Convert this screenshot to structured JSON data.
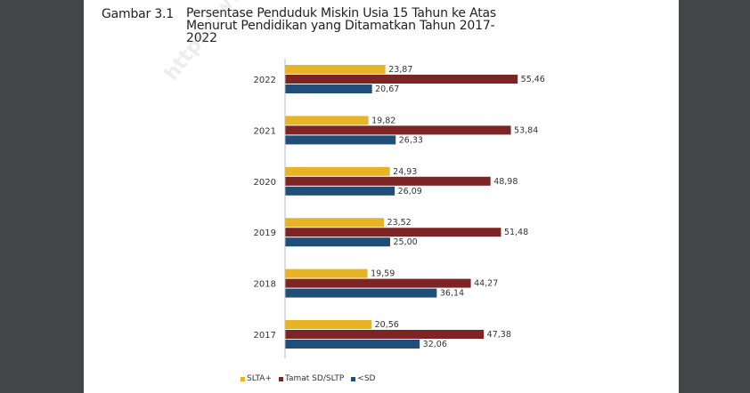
{
  "figure": {
    "label": "Gambar 3.1",
    "title": "Persentase Penduduk Miskin Usia 15 Tahun ke Atas Menurut Pendidikan yang Ditamatkan Tahun 2017-2022",
    "watermark": "https://www.bps"
  },
  "chart_data": {
    "type": "bar",
    "orientation": "horizontal",
    "categories": [
      "2022",
      "2021",
      "2020",
      "2019",
      "2018",
      "2017"
    ],
    "series": [
      {
        "name": "SLTA+",
        "color": "#E8B426",
        "values": [
          23.87,
          19.82,
          24.93,
          23.52,
          19.59,
          20.56
        ],
        "labels": [
          "23,87",
          "19,82",
          "24,93",
          "23,52",
          "19,59",
          "20,56"
        ]
      },
      {
        "name": "Tamat SD/SLTP",
        "color": "#7D2424",
        "values": [
          55.46,
          53.84,
          48.98,
          51.48,
          44.27,
          47.38
        ],
        "labels": [
          "55,46",
          "53,84",
          "48,98",
          "51,48",
          "44,27",
          "47,38"
        ]
      },
      {
        "name": "<SD",
        "color": "#1F4E79",
        "values": [
          20.67,
          26.33,
          26.09,
          25.0,
          36.14,
          32.06
        ],
        "labels": [
          "20,67",
          "26,33",
          "26,09",
          "25,00",
          "36,14",
          "32,06"
        ]
      }
    ],
    "title": "Persentase Penduduk Miskin Usia 15 Tahun ke Atas Menurut Pendidikan yang Ditamatkan Tahun 2017-2022",
    "xlabel": "",
    "ylabel": "",
    "xlim": [
      0,
      60
    ],
    "grid": false,
    "legend": "bottom"
  }
}
